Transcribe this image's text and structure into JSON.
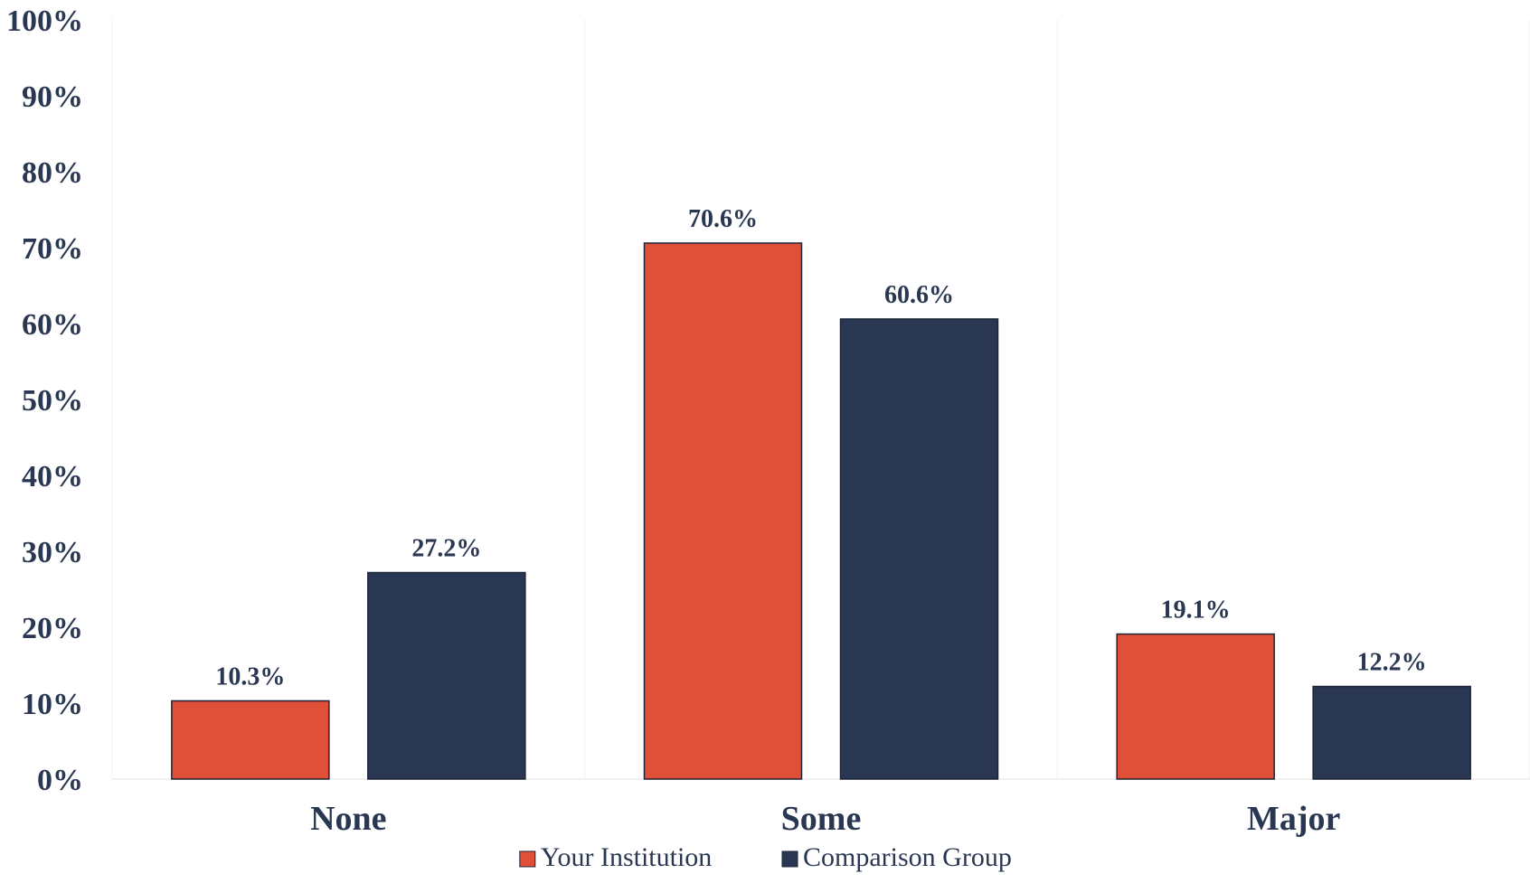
{
  "chart_data": {
    "type": "bar",
    "categories": [
      "None",
      "Some",
      "Major"
    ],
    "series": [
      {
        "name": "Your Institution",
        "values": [
          10.3,
          70.6,
          19.1
        ],
        "color": "#e04f37"
      },
      {
        "name": "Comparison Group",
        "values": [
          27.2,
          60.6,
          12.2
        ],
        "color": "#2a3752"
      }
    ],
    "data_labels": [
      [
        "10.3%",
        "70.6%",
        "19.1%"
      ],
      [
        "27.2%",
        "60.6%",
        "12.2%"
      ]
    ],
    "y_ticks": [
      "0%",
      "10%",
      "20%",
      "30%",
      "40%",
      "50%",
      "60%",
      "70%",
      "80%",
      "90%",
      "100%"
    ],
    "ylim": [
      0,
      100
    ],
    "grid": false,
    "legend_position": "bottom-center",
    "text_color": "#2a3752",
    "bar_outline_color": "#1c2438"
  }
}
